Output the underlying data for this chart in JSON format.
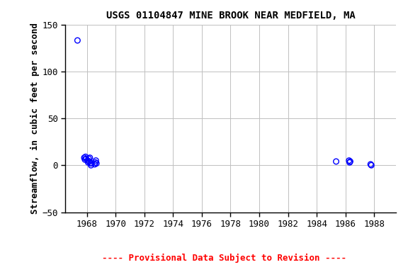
{
  "title": "USGS 01104847 MINE BROOK NEAR MEDFIELD, MA",
  "ylabel": "Streamflow, in cubic feet per second",
  "provisional_text": "---- Provisional Data Subject to Revision ----",
  "xlim": [
    1966.5,
    1989.5
  ],
  "ylim": [
    -50,
    150
  ],
  "yticks": [
    -50,
    0,
    50,
    100,
    150
  ],
  "xticks": [
    1968,
    1970,
    1972,
    1974,
    1976,
    1978,
    1980,
    1982,
    1984,
    1986,
    1988
  ],
  "background_color": "#ffffff",
  "plot_bg_color": "#ffffff",
  "marker_color": "#0000ff",
  "marker_size": 30,
  "grid_color": "#c0c0c0",
  "scatter_x": [
    1967.35,
    1967.82,
    1967.87,
    1967.91,
    1967.95,
    1968.05,
    1968.09,
    1968.13,
    1968.17,
    1968.21,
    1968.25,
    1968.29,
    1968.33,
    1968.55,
    1968.59,
    1968.63,
    1968.67,
    1985.35,
    1986.25,
    1986.29,
    1986.33,
    1987.75,
    1987.8
  ],
  "scatter_y": [
    133,
    8,
    6,
    9,
    7,
    5,
    3,
    7,
    4,
    8,
    2,
    0,
    2,
    1,
    3,
    5,
    2,
    4,
    5,
    3,
    4,
    1,
    0
  ]
}
